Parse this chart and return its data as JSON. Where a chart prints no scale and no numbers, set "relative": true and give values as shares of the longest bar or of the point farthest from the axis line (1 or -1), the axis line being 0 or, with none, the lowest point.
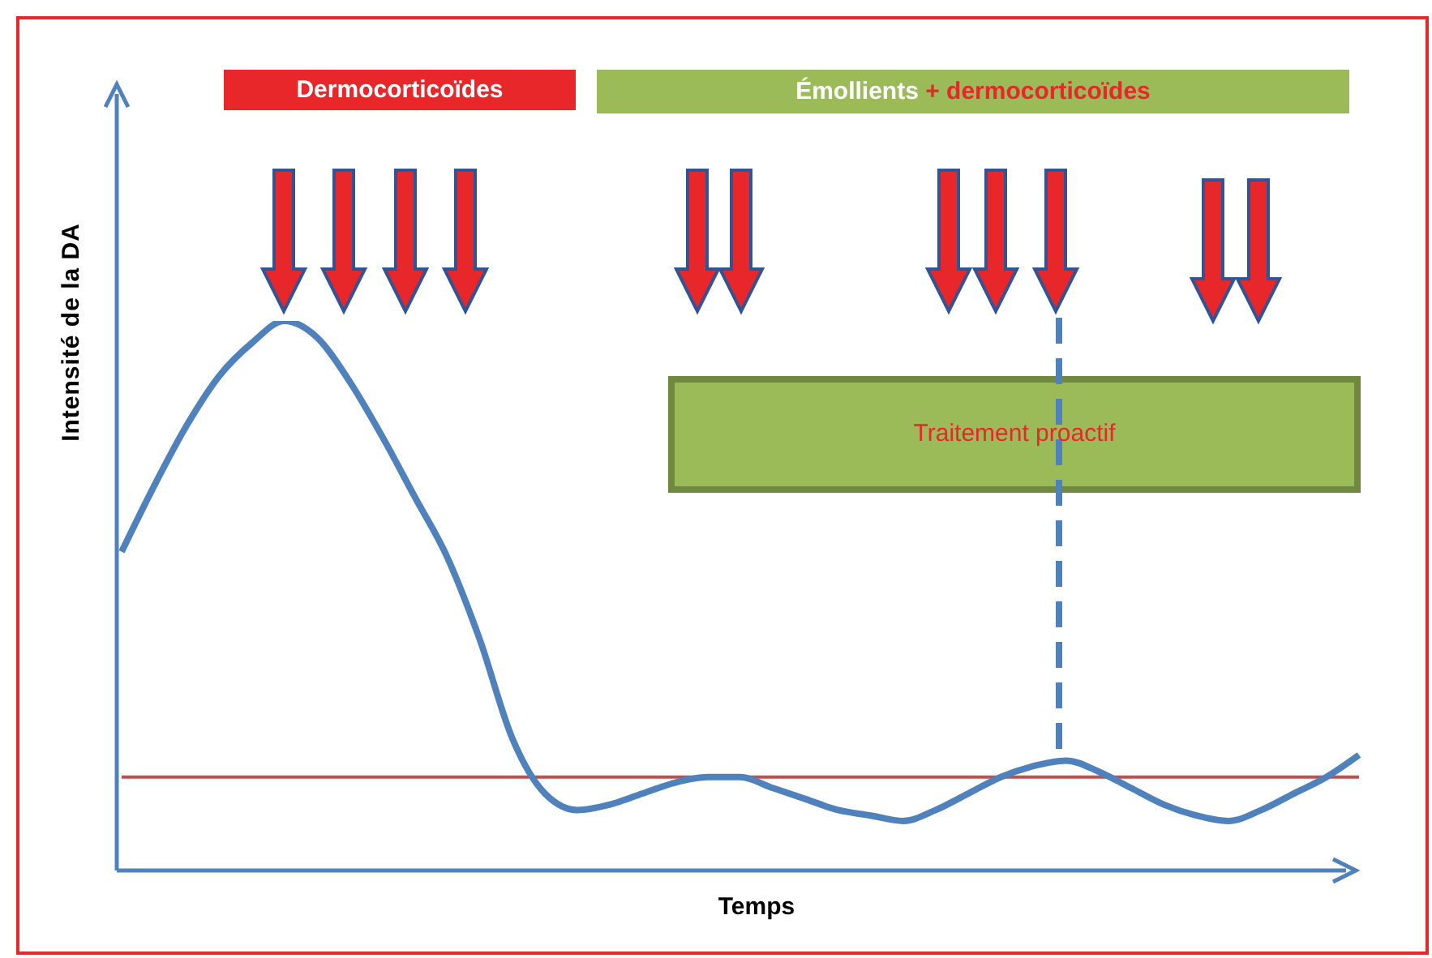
{
  "chart_data": {
    "type": "line",
    "relative": true,
    "xlabel": "Temps",
    "ylabel": "Intensité de la DA",
    "marker": "none",
    "categories": [
      null,
      null,
      null,
      null,
      null,
      null,
      null,
      null,
      null,
      null,
      null,
      null,
      null,
      null,
      null,
      null,
      null,
      null,
      null,
      null,
      null,
      null,
      null,
      null,
      null,
      null,
      null,
      null,
      null,
      null,
      null,
      null,
      null,
      null,
      null,
      null,
      null,
      null,
      null
    ],
    "series": [
      {
        "color": "#4f81bd",
        "values": [
          0.58,
          0.7,
          0.81,
          0.9,
          0.96,
          1.0,
          0.97,
          0.89,
          0.79,
          0.68,
          0.57,
          0.42,
          0.24,
          0.14,
          0.11,
          0.12,
          0.14,
          0.16,
          0.17,
          0.17,
          0.15,
          0.13,
          0.11,
          0.1,
          0.09,
          0.11,
          0.14,
          0.17,
          0.19,
          0.2,
          0.18,
          0.15,
          0.12,
          0.1,
          0.09,
          0.11,
          0.14,
          0.17,
          0.21
        ]
      }
    ],
    "ref_lines": [
      {
        "axis": "y",
        "value": 0.17,
        "color": "#c0504d"
      }
    ],
    "annotations": [
      "Dermocorticoïdes",
      "Émollients",
      "+ dermocorticoïdes",
      "Traitement proactif"
    ]
  }
}
